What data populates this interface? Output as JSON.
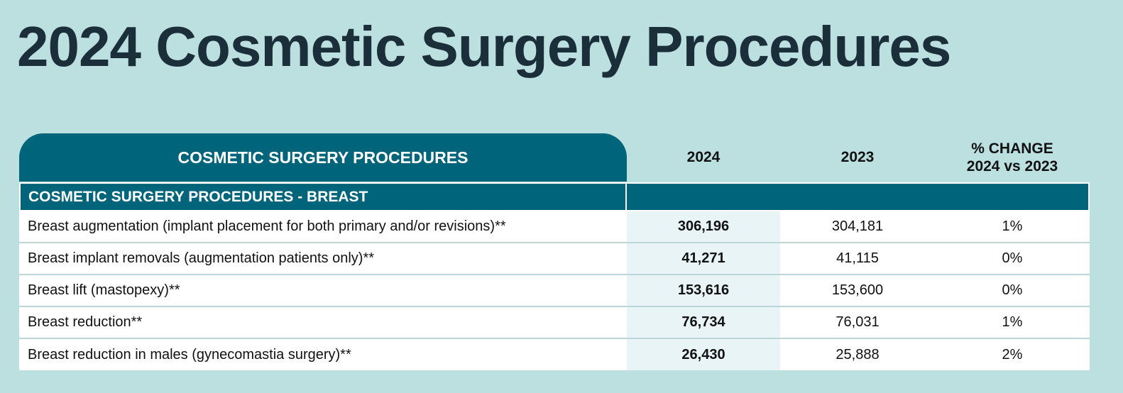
{
  "page": {
    "title": "2024 Cosmetic Surgery Procedures"
  },
  "table": {
    "headers": {
      "main": "COSMETIC SURGERY PROCEDURES",
      "col_2024": "2024",
      "col_2023": "2023",
      "col_change_line1": "% CHANGE",
      "col_change_line2": "2024 vs 2023"
    },
    "section": {
      "label": "COSMETIC SURGERY PROCEDURES - BREAST"
    },
    "rows": [
      {
        "label": "Breast augmentation (implant placement for both primary and/or revisions)**",
        "v2024": "306,196",
        "v2023": "304,181",
        "change": "1%"
      },
      {
        "label": "Breast implant removals (augmentation patients only)**",
        "v2024": "41,271",
        "v2023": "41,115",
        "change": "0%"
      },
      {
        "label": "Breast lift (mastopexy)**",
        "v2024": "153,616",
        "v2023": "153,600",
        "change": "0%"
      },
      {
        "label": "Breast reduction**",
        "v2024": "76,734",
        "v2023": "76,031",
        "change": "1%"
      },
      {
        "label": "Breast reduction in males (gynecomastia surgery)**",
        "v2024": "26,430",
        "v2023": "25,888",
        "change": "2%"
      }
    ]
  },
  "colors": {
    "background": "#bcdfe0",
    "header_teal": "#00657a",
    "title_text": "#1b2f3b",
    "highlight_col": "#e8f4f5"
  }
}
